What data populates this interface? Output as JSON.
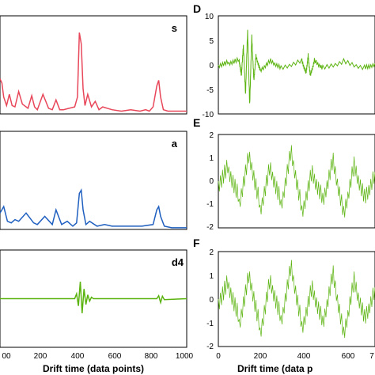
{
  "chart_data": [
    {
      "type": "line",
      "panel_label": "s",
      "color": "#e8475a",
      "x_range": [
        0,
        1000
      ],
      "series": [
        {
          "x": [
            0,
            10,
            20,
            35,
            50,
            65,
            80,
            100,
            120,
            150,
            170,
            185,
            200,
            230,
            260,
            280,
            300,
            320,
            340,
            370,
            400,
            415,
            425,
            435,
            445,
            455,
            470,
            490,
            510,
            530,
            550,
            600,
            650,
            700,
            750,
            780,
            800,
            820,
            840,
            850,
            860,
            875,
            900,
            950,
            1000
          ],
          "y": [
            0.25,
            0.22,
            0.12,
            0.06,
            0.14,
            0.06,
            0.05,
            0.16,
            0.07,
            0.04,
            0.13,
            0.05,
            0.03,
            0.14,
            0.04,
            0.03,
            0.1,
            0.03,
            0.03,
            0.04,
            0.05,
            0.12,
            0.58,
            0.5,
            0.18,
            0.06,
            0.14,
            0.05,
            0.09,
            0.03,
            0.05,
            0.03,
            0.02,
            0.03,
            0.02,
            0.03,
            0.02,
            0.05,
            0.2,
            0.24,
            0.12,
            0.03,
            0.02,
            0.02,
            0.02
          ]
        }
      ]
    },
    {
      "type": "line",
      "panel_label": "a",
      "color": "#1f5fbf",
      "x_range": [
        0,
        1000
      ],
      "series": [
        {
          "x": [
            0,
            20,
            40,
            60,
            80,
            100,
            140,
            180,
            200,
            240,
            280,
            300,
            330,
            360,
            390,
            410,
            425,
            435,
            445,
            460,
            480,
            520,
            560,
            600,
            680,
            760,
            820,
            840,
            850,
            860,
            880,
            920,
            1000
          ],
          "y": [
            0.1,
            0.14,
            0.05,
            0.04,
            0.06,
            0.05,
            0.1,
            0.04,
            0.03,
            0.08,
            0.03,
            0.12,
            0.03,
            0.05,
            0.02,
            0.04,
            0.22,
            0.24,
            0.12,
            0.03,
            0.05,
            0.02,
            0.03,
            0.02,
            0.02,
            0.02,
            0.03,
            0.12,
            0.14,
            0.08,
            0.02,
            0.01,
            0.01
          ]
        }
      ]
    },
    {
      "type": "line",
      "panel_label": "d4",
      "color": "#5bb30f",
      "x_range": [
        0,
        1000
      ],
      "series": [
        {
          "x": [
            0,
            400,
            410,
            420,
            430,
            440,
            450,
            460,
            470,
            480,
            490,
            500,
            840,
            850,
            860,
            870,
            880,
            1000
          ],
          "y": [
            0,
            0,
            0.1,
            -0.15,
            0.35,
            -0.3,
            0.2,
            -0.12,
            0.08,
            -0.05,
            0.03,
            0,
            0,
            0.06,
            -0.08,
            0.05,
            -0.02,
            0
          ]
        }
      ]
    },
    {
      "type": "line",
      "panel_label": "D",
      "color": "#5bb30f",
      "x_range": [
        0,
        750
      ],
      "y_range": [
        -10,
        10
      ],
      "y_ticks": [
        10,
        5,
        0,
        -5,
        -10
      ],
      "series": [
        {
          "x": [
            0,
            50,
            100,
            110,
            120,
            130,
            140,
            150,
            160,
            170,
            180,
            200,
            250,
            300,
            400,
            420,
            430,
            440,
            460,
            500,
            600,
            700,
            750
          ],
          "y": [
            0,
            0.5,
            1,
            -2,
            4,
            -6,
            7,
            -8,
            6,
            -3,
            2,
            -1,
            1,
            -0.5,
            1,
            -1.5,
            2,
            -2,
            1,
            -0.5,
            0.8,
            -0.5,
            0.3
          ]
        }
      ]
    },
    {
      "type": "line",
      "panel_label": "E",
      "color": "#5bb30f",
      "x_range": [
        0,
        750
      ],
      "y_range": [
        -2,
        2
      ],
      "y_ticks": [
        2,
        1,
        0,
        -1,
        -2
      ],
      "series": [
        {
          "x": [
            0,
            50,
            100,
            150,
            200,
            250,
            300,
            350,
            400,
            450,
            500,
            550,
            600,
            650,
            700,
            750
          ],
          "y": [
            0,
            0.6,
            -0.8,
            1.2,
            -1.1,
            0.7,
            -0.9,
            1.4,
            -1.2,
            0.5,
            -0.7,
            1.0,
            -1.3,
            0.8,
            -0.6,
            0.4
          ]
        }
      ]
    },
    {
      "type": "line",
      "panel_label": "F",
      "color": "#5bb30f",
      "x_range": [
        0,
        750
      ],
      "y_range": [
        -2,
        2
      ],
      "y_ticks": [
        2,
        1,
        0,
        -1,
        -2
      ],
      "series": [
        {
          "x": [
            0,
            50,
            100,
            150,
            200,
            250,
            300,
            350,
            400,
            450,
            500,
            550,
            600,
            650,
            700,
            750
          ],
          "y": [
            0,
            0.7,
            -0.9,
            1.1,
            -1.3,
            0.9,
            -0.8,
            1.5,
            -1.1,
            0.6,
            -0.9,
            1.2,
            -1.4,
            0.9,
            -0.7,
            0.5
          ]
        }
      ]
    }
  ],
  "axes": {
    "xlabel": "Drift time (data points)",
    "xlabel_right": "Drift time (data p",
    "left_x_ticks": [
      "00",
      "200",
      "400",
      "600",
      "800",
      "1000"
    ],
    "right_x_ticks": [
      "0",
      "200",
      "400",
      "600"
    ],
    "right_x_last_tick": "7",
    "panel_letters": [
      "D",
      "E",
      "F"
    ]
  }
}
